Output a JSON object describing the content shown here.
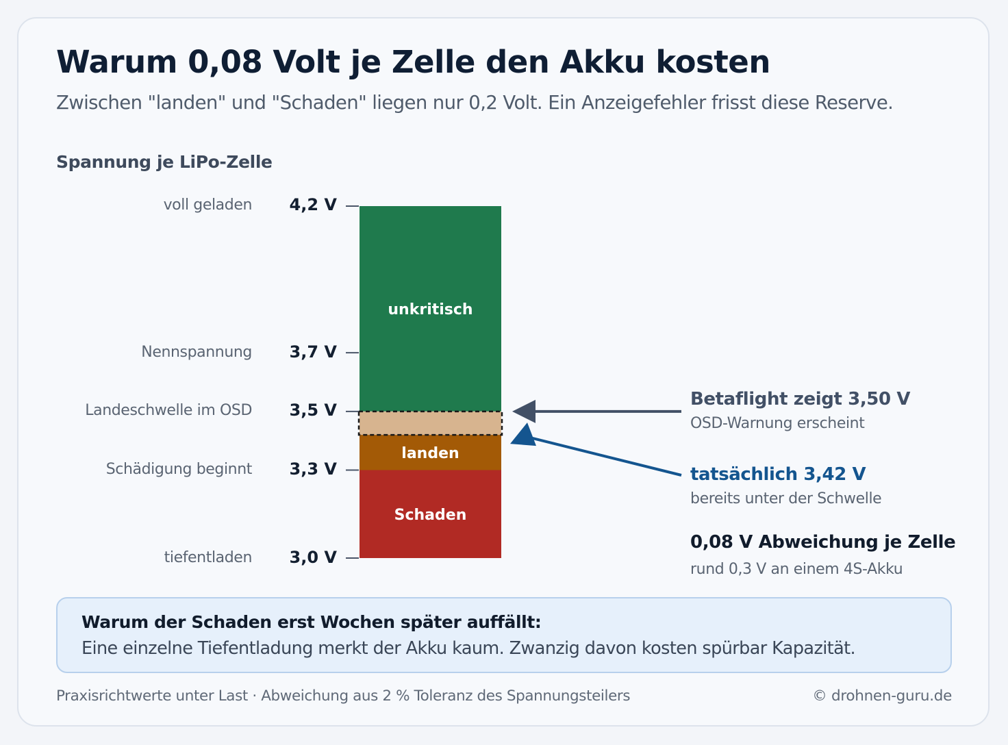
{
  "title": "Warum 0,08 Volt je Zelle den Akku kosten",
  "subtitle": "Zwischen \"landen\" und \"Schaden\" liegen nur 0,2 Volt. Ein Anzeigefehler frisst diese Reserve.",
  "section_label": "Spannung je LiPo-Zelle",
  "levels": [
    {
      "desc": "voll geladen",
      "value": "4,2 V",
      "volt": 4.2
    },
    {
      "desc": "Nennspannung",
      "value": "3,7 V",
      "volt": 3.7
    },
    {
      "desc": "Landeschwelle im OSD",
      "value": "3,5 V",
      "volt": 3.5
    },
    {
      "desc": "Schädigung beginnt",
      "value": "3,3 V",
      "volt": 3.3
    },
    {
      "desc": "tiefentladen",
      "value": "3,0 V",
      "volt": 3.0
    }
  ],
  "bands": [
    {
      "label": "unkritisch",
      "from": 3.5,
      "to": 4.2,
      "color": "#1f7a4d"
    },
    {
      "label": "",
      "from": 3.42,
      "to": 3.5,
      "color": "#d7b48f"
    },
    {
      "label": "landen",
      "from": 3.3,
      "to": 3.42,
      "color": "#a35a06"
    },
    {
      "label": "Schaden",
      "from": 3.0,
      "to": 3.3,
      "color": "#b12a24"
    }
  ],
  "annotations": {
    "shown": {
      "title": "Betaflight zeigt 3,50 V",
      "sub": "OSD-Warnung erscheint",
      "volt": 3.5,
      "color": "#425066"
    },
    "actual": {
      "title": "tatsächlich 3,42 V",
      "sub": "bereits unter der Schwelle",
      "volt": 3.42,
      "color": "#14558f"
    },
    "deviation": {
      "title": "0,08 V Abweichung je Zelle",
      "sub": "rund 0,3 V an einem 4S-Akku",
      "color": "#111c2c"
    }
  },
  "note": {
    "title": "Warum der Schaden erst Wochen später auffällt:",
    "text": "Eine einzelne Tiefentladung merkt der Akku kaum. Zwanzig davon kosten spürbar Kapazität."
  },
  "footer": {
    "left": "Praxisrichtwerte unter Last · Abweichung aus 2 % Toleranz des Spannungsteilers",
    "right": "© drohnen-guru.de"
  }
}
